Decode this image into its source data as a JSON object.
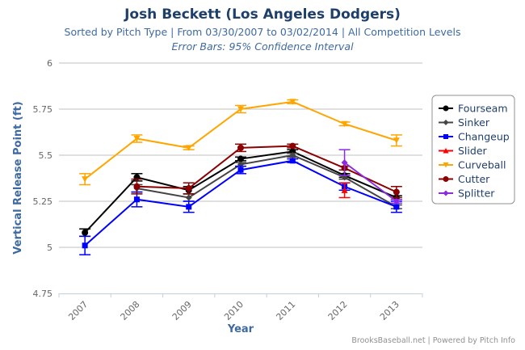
{
  "chart_data": {
    "type": "line",
    "title": "Josh Beckett (Los Angeles Dodgers)",
    "subtitle": "Sorted by Pitch Type | From 03/30/2007 to 03/02/2014 | All Competition Levels",
    "subtitle2": "Error Bars: 95% Confidence Interval",
    "xlabel": "Year",
    "ylabel": "Vertical Release Point (ft)",
    "categories": [
      "2007",
      "2008",
      "2009",
      "2010",
      "2011",
      "2012",
      "2013"
    ],
    "yticks": [
      "4.75",
      "5",
      "5.25",
      "5.5",
      "5.75",
      "6"
    ],
    "ylim": [
      4.75,
      6
    ],
    "grid": true,
    "legend_position": "right",
    "series": [
      {
        "name": "Fourseam",
        "color": "#000000",
        "marker": "circle",
        "values": [
          5.08,
          5.38,
          5.31,
          5.48,
          5.52,
          5.39,
          5.27
        ],
        "err": [
          0.02,
          0.02,
          0.02,
          0.01,
          0.01,
          0.01,
          0.01
        ]
      },
      {
        "name": "Sinker",
        "color": "#444444",
        "marker": "diamond",
        "values": [
          null,
          5.32,
          5.27,
          5.45,
          5.5,
          5.38,
          5.22
        ],
        "err": [
          null,
          0.02,
          0.02,
          0.01,
          0.01,
          0.01,
          0.01
        ]
      },
      {
        "name": "Changeup",
        "color": "#0000ff",
        "marker": "square",
        "values": [
          5.01,
          5.26,
          5.22,
          5.42,
          5.47,
          5.33,
          5.22
        ],
        "err": [
          0.05,
          0.04,
          0.03,
          0.02,
          0.01,
          0.02,
          0.03
        ]
      },
      {
        "name": "Slider",
        "color": "#ff0000",
        "marker": "triangle",
        "values": [
          null,
          null,
          null,
          null,
          null,
          5.31,
          null
        ],
        "err": [
          null,
          null,
          null,
          null,
          null,
          0.04,
          null
        ]
      },
      {
        "name": "Curveball",
        "color": "#ffa500",
        "marker": "triangle-down",
        "values": [
          5.37,
          5.59,
          5.54,
          5.75,
          5.79,
          5.67,
          5.58
        ],
        "err": [
          0.03,
          0.02,
          0.01,
          0.02,
          0.01,
          0.01,
          0.03
        ]
      },
      {
        "name": "Cutter",
        "color": "#8b0000",
        "marker": "circle",
        "values": [
          null,
          5.33,
          5.32,
          5.54,
          5.55,
          5.43,
          5.3
        ],
        "err": [
          null,
          0.04,
          0.03,
          0.02,
          0.01,
          0.01,
          0.03
        ]
      },
      {
        "name": "Splitter",
        "color": "#8a2be2",
        "marker": "diamond",
        "values": [
          null,
          null,
          null,
          null,
          null,
          5.46,
          5.25
        ],
        "err": [
          null,
          null,
          null,
          null,
          null,
          0.07,
          0.01
        ]
      }
    ]
  },
  "credits": "BrooksBaseball.net | Powered by Pitch Info"
}
